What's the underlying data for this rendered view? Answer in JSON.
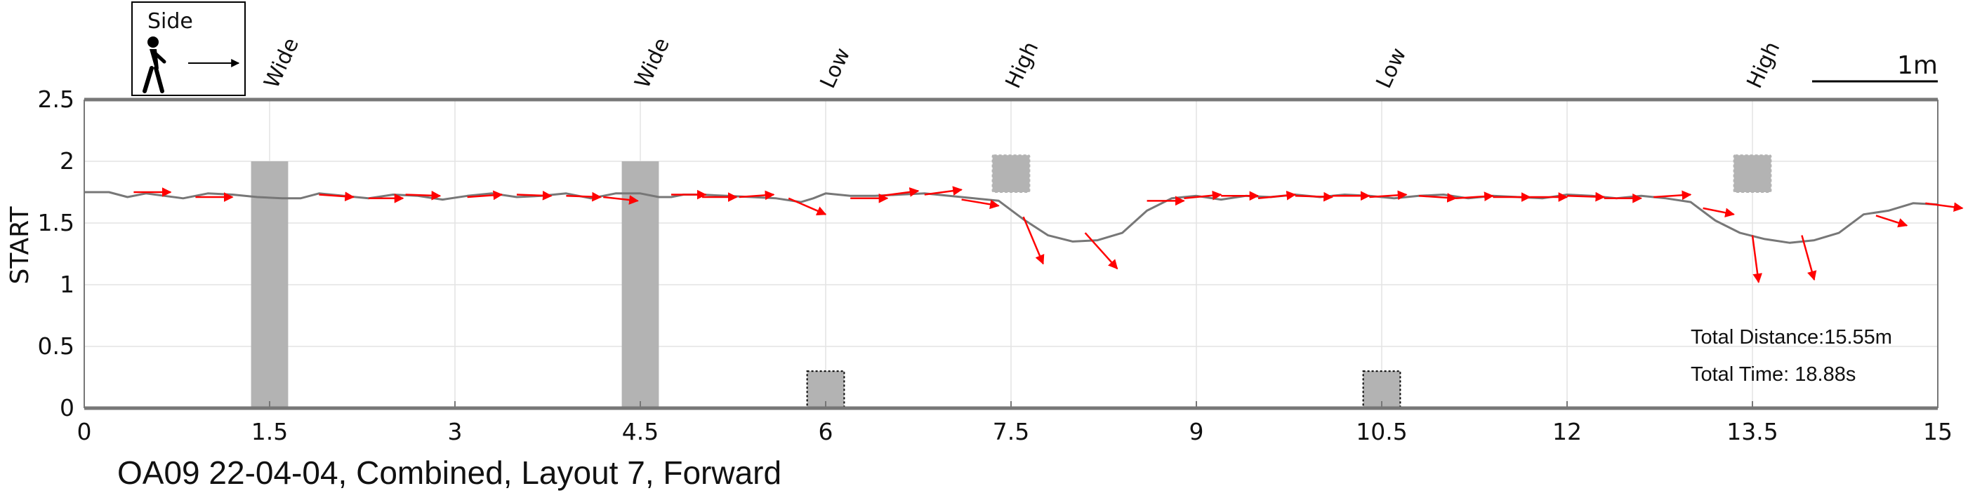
{
  "chart_data": {
    "type": "line",
    "caption": "OA09 22-04-04, Combined, Layout 7, Forward",
    "ylabel": "START",
    "xlim": [
      0,
      15
    ],
    "ylim": [
      0,
      2.5
    ],
    "x_ticks": [
      "0",
      "1.5",
      "3",
      "4.5",
      "6",
      "7.5",
      "9",
      "10.5",
      "12",
      "13.5",
      "15"
    ],
    "y_ticks": [
      "0",
      "0.5",
      "1",
      "1.5",
      "2",
      "2.5"
    ],
    "grid": true,
    "legend": {
      "label": "Side",
      "icon": "walking-person-icon",
      "placement": "top-left"
    },
    "scale_bar": {
      "label": "1m",
      "length_m": 1,
      "placement": "top-right"
    },
    "stats": {
      "distance": "Total Distance:15.55m",
      "time": "Total Time: 18.88s"
    },
    "obstacles": [
      {
        "label": "Wide",
        "kind": "wide",
        "x_start": 1.35,
        "x_end": 1.65,
        "y_bottom": 0,
        "y_top": 2.0
      },
      {
        "label": "Wide",
        "kind": "wide",
        "x_start": 4.35,
        "x_end": 4.65,
        "y_bottom": 0,
        "y_top": 2.0
      },
      {
        "label": "Low",
        "kind": "low",
        "x_start": 5.85,
        "x_end": 6.15,
        "y_bottom": 0,
        "y_top": 0.3
      },
      {
        "label": "High",
        "kind": "high",
        "x_start": 7.35,
        "x_end": 7.65,
        "y_bottom": 1.75,
        "y_top": 2.05
      },
      {
        "label": "Low",
        "kind": "low",
        "x_start": 10.35,
        "x_end": 10.65,
        "y_bottom": 0,
        "y_top": 0.3
      },
      {
        "label": "High",
        "kind": "high",
        "x_start": 13.35,
        "x_end": 13.65,
        "y_bottom": 1.75,
        "y_top": 2.05
      }
    ],
    "series": [
      {
        "points": [
          [
            0,
            1.75
          ],
          [
            0.2,
            1.75
          ],
          [
            0.35,
            1.71
          ],
          [
            0.5,
            1.74
          ],
          [
            0.65,
            1.72
          ],
          [
            0.8,
            1.7
          ],
          [
            1.0,
            1.74
          ],
          [
            1.2,
            1.73
          ],
          [
            1.4,
            1.71
          ],
          [
            1.6,
            1.7
          ],
          [
            1.75,
            1.7
          ],
          [
            1.9,
            1.74
          ],
          [
            2.1,
            1.72
          ],
          [
            2.3,
            1.7
          ],
          [
            2.5,
            1.73
          ],
          [
            2.7,
            1.72
          ],
          [
            2.9,
            1.69
          ],
          [
            3.1,
            1.72
          ],
          [
            3.3,
            1.74
          ],
          [
            3.5,
            1.71
          ],
          [
            3.7,
            1.72
          ],
          [
            3.9,
            1.74
          ],
          [
            4.1,
            1.7
          ],
          [
            4.3,
            1.74
          ],
          [
            4.5,
            1.74
          ],
          [
            4.65,
            1.71
          ],
          [
            4.75,
            1.71
          ],
          [
            4.85,
            1.73
          ],
          [
            5.0,
            1.73
          ],
          [
            5.2,
            1.72
          ],
          [
            5.4,
            1.71
          ],
          [
            5.6,
            1.7
          ],
          [
            5.8,
            1.67
          ],
          [
            5.9,
            1.7
          ],
          [
            6.0,
            1.74
          ],
          [
            6.2,
            1.72
          ],
          [
            6.4,
            1.72
          ],
          [
            6.6,
            1.73
          ],
          [
            6.8,
            1.74
          ],
          [
            7.0,
            1.72
          ],
          [
            7.2,
            1.7
          ],
          [
            7.4,
            1.68
          ],
          [
            7.6,
            1.53
          ],
          [
            7.8,
            1.4
          ],
          [
            8.0,
            1.35
          ],
          [
            8.2,
            1.36
          ],
          [
            8.4,
            1.42
          ],
          [
            8.6,
            1.6
          ],
          [
            8.8,
            1.7
          ],
          [
            9.0,
            1.72
          ],
          [
            9.2,
            1.69
          ],
          [
            9.4,
            1.72
          ],
          [
            9.6,
            1.71
          ],
          [
            9.8,
            1.73
          ],
          [
            10.0,
            1.71
          ],
          [
            10.2,
            1.73
          ],
          [
            10.4,
            1.72
          ],
          [
            10.6,
            1.7
          ],
          [
            10.8,
            1.72
          ],
          [
            11.0,
            1.73
          ],
          [
            11.2,
            1.7
          ],
          [
            11.4,
            1.72
          ],
          [
            11.6,
            1.71
          ],
          [
            11.8,
            1.7
          ],
          [
            12.0,
            1.73
          ],
          [
            12.2,
            1.72
          ],
          [
            12.4,
            1.7
          ],
          [
            12.6,
            1.72
          ],
          [
            12.8,
            1.7
          ],
          [
            13.0,
            1.67
          ],
          [
            13.2,
            1.52
          ],
          [
            13.4,
            1.42
          ],
          [
            13.6,
            1.37
          ],
          [
            13.8,
            1.34
          ],
          [
            14.0,
            1.36
          ],
          [
            14.2,
            1.42
          ],
          [
            14.4,
            1.57
          ],
          [
            14.6,
            1.6
          ],
          [
            14.8,
            1.66
          ],
          [
            15.0,
            1.65
          ]
        ]
      }
    ],
    "heading_arrows": [
      [
        0.4,
        1.75,
        0.3,
        0.0
      ],
      [
        0.9,
        1.71,
        0.3,
        0.0
      ],
      [
        1.9,
        1.73,
        0.28,
        -0.02
      ],
      [
        2.3,
        1.7,
        0.28,
        0.0
      ],
      [
        2.6,
        1.73,
        0.28,
        -0.01
      ],
      [
        3.1,
        1.71,
        0.28,
        0.02
      ],
      [
        3.5,
        1.73,
        0.28,
        -0.01
      ],
      [
        3.9,
        1.72,
        0.28,
        -0.01
      ],
      [
        4.2,
        1.71,
        0.28,
        -0.03
      ],
      [
        4.75,
        1.73,
        0.28,
        0.0
      ],
      [
        5.0,
        1.71,
        0.28,
        0.0
      ],
      [
        5.3,
        1.71,
        0.28,
        0.02
      ],
      [
        5.7,
        1.7,
        0.3,
        -0.13
      ],
      [
        6.2,
        1.7,
        0.3,
        0.0
      ],
      [
        6.45,
        1.72,
        0.3,
        0.04
      ],
      [
        6.8,
        1.73,
        0.3,
        0.04
      ],
      [
        7.1,
        1.69,
        0.3,
        -0.05
      ],
      [
        7.6,
        1.55,
        0.16,
        -0.38
      ],
      [
        8.1,
        1.42,
        0.26,
        -0.29
      ],
      [
        8.6,
        1.68,
        0.3,
        0.0
      ],
      [
        8.9,
        1.7,
        0.3,
        0.03
      ],
      [
        9.2,
        1.72,
        0.3,
        0.0
      ],
      [
        9.5,
        1.7,
        0.3,
        0.03
      ],
      [
        9.8,
        1.72,
        0.3,
        -0.01
      ],
      [
        10.1,
        1.72,
        0.3,
        0.0
      ],
      [
        10.4,
        1.71,
        0.3,
        0.02
      ],
      [
        10.8,
        1.72,
        0.3,
        -0.02
      ],
      [
        11.1,
        1.7,
        0.3,
        0.02
      ],
      [
        11.4,
        1.71,
        0.3,
        0.0
      ],
      [
        11.7,
        1.71,
        0.3,
        0.0
      ],
      [
        12.0,
        1.72,
        0.3,
        -0.01
      ],
      [
        12.3,
        1.7,
        0.3,
        0.0
      ],
      [
        12.7,
        1.71,
        0.3,
        0.02
      ],
      [
        13.1,
        1.62,
        0.25,
        -0.05
      ],
      [
        13.5,
        1.4,
        0.05,
        -0.38
      ],
      [
        13.9,
        1.4,
        0.1,
        -0.36
      ],
      [
        14.5,
        1.56,
        0.25,
        -0.08
      ],
      [
        14.9,
        1.66,
        0.3,
        -0.04
      ]
    ],
    "colors": {
      "path": "#777777",
      "heading_arrow": "#ff0000",
      "obstacle_fill": "#b3b3b3",
      "axis": "#777777",
      "grid": "#e3e3e3"
    }
  }
}
